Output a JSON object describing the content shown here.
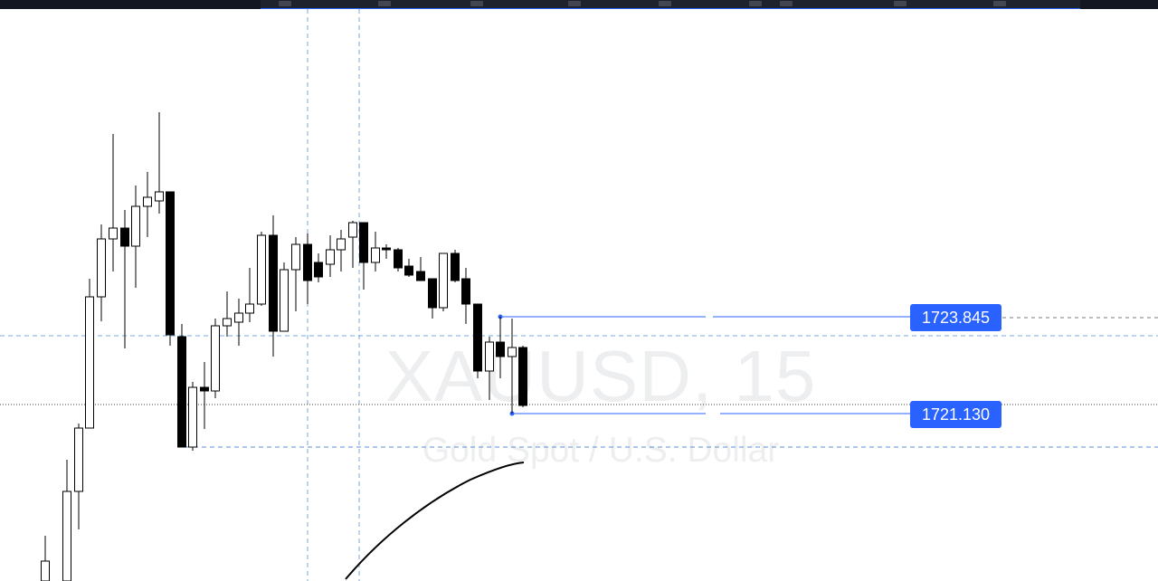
{
  "chart": {
    "symbol_watermark": "XAUUSD, 15",
    "description_watermark": "Gold Spot / U.S. Dollar",
    "range_label_upper": "1723.845",
    "range_label_lower": "1721.130",
    "colors": {
      "up_candle_body": "#ffffff",
      "down_candle_body": "#000000",
      "candle_outline": "#000000",
      "drawing_accent": "#2962ff",
      "crosshair": "#5b8fd6",
      "toolbar_bg": "#1e222d"
    },
    "icons": [
      "chart-toolbar-icons"
    ]
  }
}
